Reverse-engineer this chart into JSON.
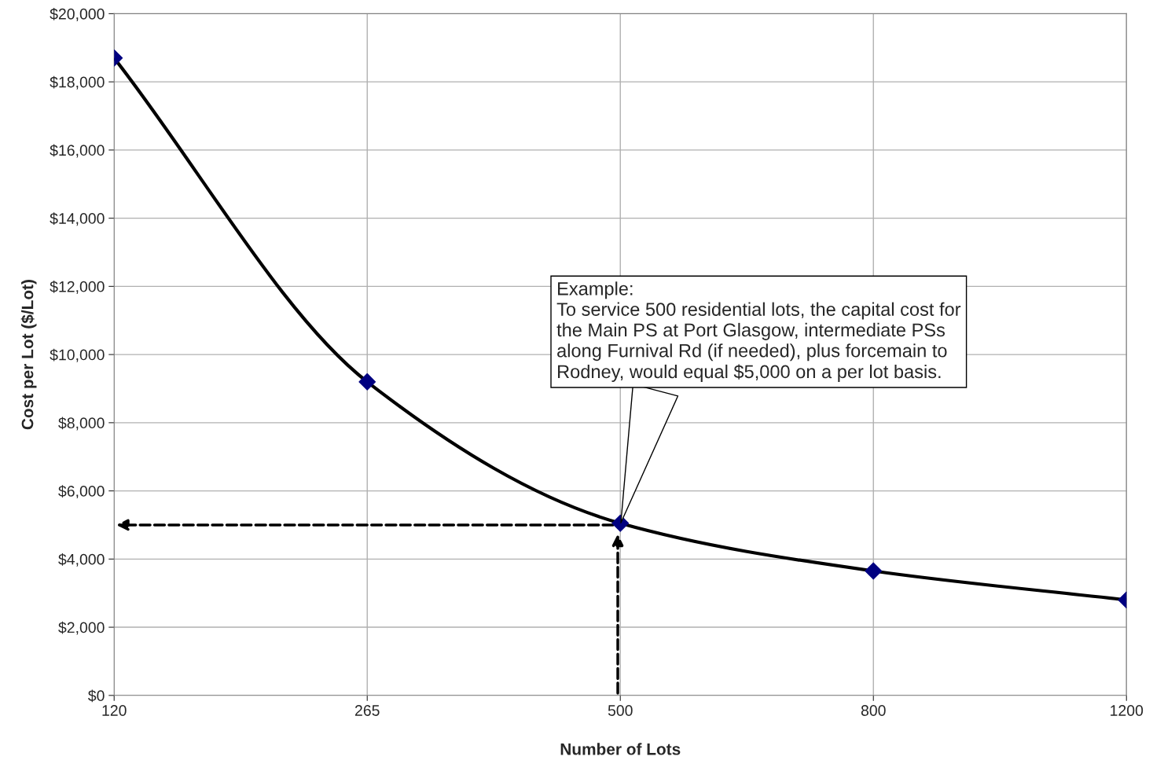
{
  "chart_data": {
    "type": "line",
    "xlabel": "Number of Lots",
    "ylabel": "Cost per Lot ($/Lot)",
    "categories": [
      "120",
      "265",
      "500",
      "800",
      "1200"
    ],
    "series": [
      {
        "color": "#000000",
        "values": [
          18700,
          9200,
          5050,
          3650,
          2800
        ]
      }
    ],
    "marker": "diamond",
    "line_style": "solid",
    "ylim": [
      0,
      20000
    ],
    "yticks": [
      {
        "value": 0,
        "label": "$0"
      },
      {
        "value": 2000,
        "label": "$2,000"
      },
      {
        "value": 4000,
        "label": "$4,000"
      },
      {
        "value": 6000,
        "label": "$6,000"
      },
      {
        "value": 8000,
        "label": "$8,000"
      },
      {
        "value": 10000,
        "label": "$10,000"
      },
      {
        "value": 12000,
        "label": "$12,000"
      },
      {
        "value": 14000,
        "label": "$14,000"
      },
      {
        "value": 16000,
        "label": "$16,000"
      },
      {
        "value": 18000,
        "label": "$18,000"
      },
      {
        "value": 20000,
        "label": "$20,000"
      }
    ],
    "grid": true,
    "legend": false,
    "annotations": [
      {
        "text": "Example:\nTo service 500 residential lots, the capital cost for\nthe Main PS at Port Glasgow, intermediate PSs\nalong Furnival Rd (if needed), plus forcemain to\nRodney, would equal $5,000 on a per lot basis.",
        "x": "500",
        "y": 5000
      }
    ]
  }
}
